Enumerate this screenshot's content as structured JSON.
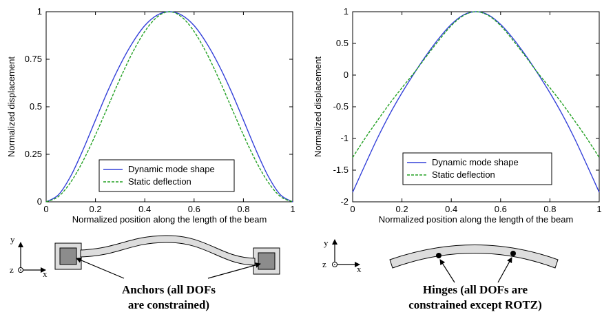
{
  "chart_data": [
    {
      "type": "line",
      "title": "",
      "xlabel": "Normalized position along the length of the beam",
      "ylabel": "Normalized displacement",
      "xlim": [
        0,
        1
      ],
      "ylim": [
        0,
        1
      ],
      "xticks": [
        "0",
        "0.2",
        "0.4",
        "0.6",
        "0.8",
        "1"
      ],
      "yticks": [
        "0",
        "0.25",
        "0.5",
        "0.75",
        "1"
      ],
      "grid": false,
      "legend_position": "bottom-center",
      "series": [
        {
          "name": "Dynamic mode shape",
          "color": "#3340d9",
          "style": "solid",
          "x": [
            0,
            0.05,
            0.1,
            0.15,
            0.2,
            0.25,
            0.3,
            0.35,
            0.4,
            0.45,
            0.5,
            0.55,
            0.6,
            0.65,
            0.7,
            0.75,
            0.8,
            0.85,
            0.9,
            0.95,
            1
          ],
          "y": [
            0,
            0.037,
            0.136,
            0.275,
            0.43,
            0.583,
            0.72,
            0.836,
            0.927,
            0.982,
            1,
            0.982,
            0.927,
            0.836,
            0.72,
            0.583,
            0.43,
            0.275,
            0.136,
            0.037,
            0
          ]
        },
        {
          "name": "Static deflection",
          "color": "#22a022",
          "style": "dashed",
          "x": [
            0,
            0.05,
            0.1,
            0.15,
            0.2,
            0.25,
            0.3,
            0.35,
            0.4,
            0.45,
            0.5,
            0.55,
            0.6,
            0.65,
            0.7,
            0.75,
            0.8,
            0.85,
            0.9,
            0.95,
            1
          ],
          "y": [
            0,
            0.028,
            0.104,
            0.216,
            0.352,
            0.5,
            0.648,
            0.784,
            0.896,
            0.972,
            1,
            0.972,
            0.896,
            0.784,
            0.648,
            0.5,
            0.352,
            0.216,
            0.104,
            0.028,
            0
          ]
        }
      ]
    },
    {
      "type": "line",
      "title": "",
      "xlabel": "Normalized position along the length of the beam",
      "ylabel": "Normalized displacement",
      "xlim": [
        0,
        1
      ],
      "ylim": [
        -2,
        1
      ],
      "xticks": [
        "0",
        "0.2",
        "0.4",
        "0.6",
        "0.8",
        "1"
      ],
      "yticks": [
        "-2",
        "-1.5",
        "-1",
        "-0.5",
        "0",
        "0.5",
        "1"
      ],
      "grid": false,
      "legend_position": "bottom-center",
      "series": [
        {
          "name": "Dynamic mode shape",
          "color": "#3340d9",
          "style": "solid",
          "x": [
            0,
            0.05,
            0.1,
            0.15,
            0.2,
            0.25,
            0.3,
            0.35,
            0.4,
            0.45,
            0.5,
            0.55,
            0.6,
            0.65,
            0.7,
            0.75,
            0.8,
            0.85,
            0.9,
            0.95,
            1
          ],
          "y": [
            -1.85,
            -1.42,
            -1.0,
            -0.62,
            -0.28,
            0.03,
            0.32,
            0.58,
            0.8,
            0.95,
            1.0,
            0.95,
            0.8,
            0.58,
            0.32,
            0.03,
            -0.28,
            -0.62,
            -1.0,
            -1.42,
            -1.85
          ]
        },
        {
          "name": "Static deflection",
          "color": "#22a022",
          "style": "dashed",
          "x": [
            0,
            0.05,
            0.1,
            0.15,
            0.2,
            0.25,
            0.3,
            0.35,
            0.4,
            0.45,
            0.5,
            0.55,
            0.6,
            0.65,
            0.7,
            0.75,
            0.8,
            0.85,
            0.9,
            0.95,
            1
          ],
          "y": [
            -1.3,
            -1.0,
            -0.72,
            -0.45,
            -0.2,
            0.04,
            0.3,
            0.55,
            0.78,
            0.94,
            1.0,
            0.94,
            0.78,
            0.55,
            0.3,
            0.04,
            -0.2,
            -0.45,
            -0.72,
            -1.0,
            -1.3
          ]
        }
      ]
    }
  ],
  "diagrams": {
    "left": {
      "axis_y": "y",
      "axis_x": "x",
      "axis_z": "z",
      "caption_lines": [
        "Anchors (all DOFs",
        "are constrained)"
      ]
    },
    "right": {
      "axis_y": "y",
      "axis_x": "x",
      "axis_z": "z",
      "caption_lines": [
        "Hinges (all DOFs are",
        "constrained except ROTZ)"
      ]
    }
  }
}
